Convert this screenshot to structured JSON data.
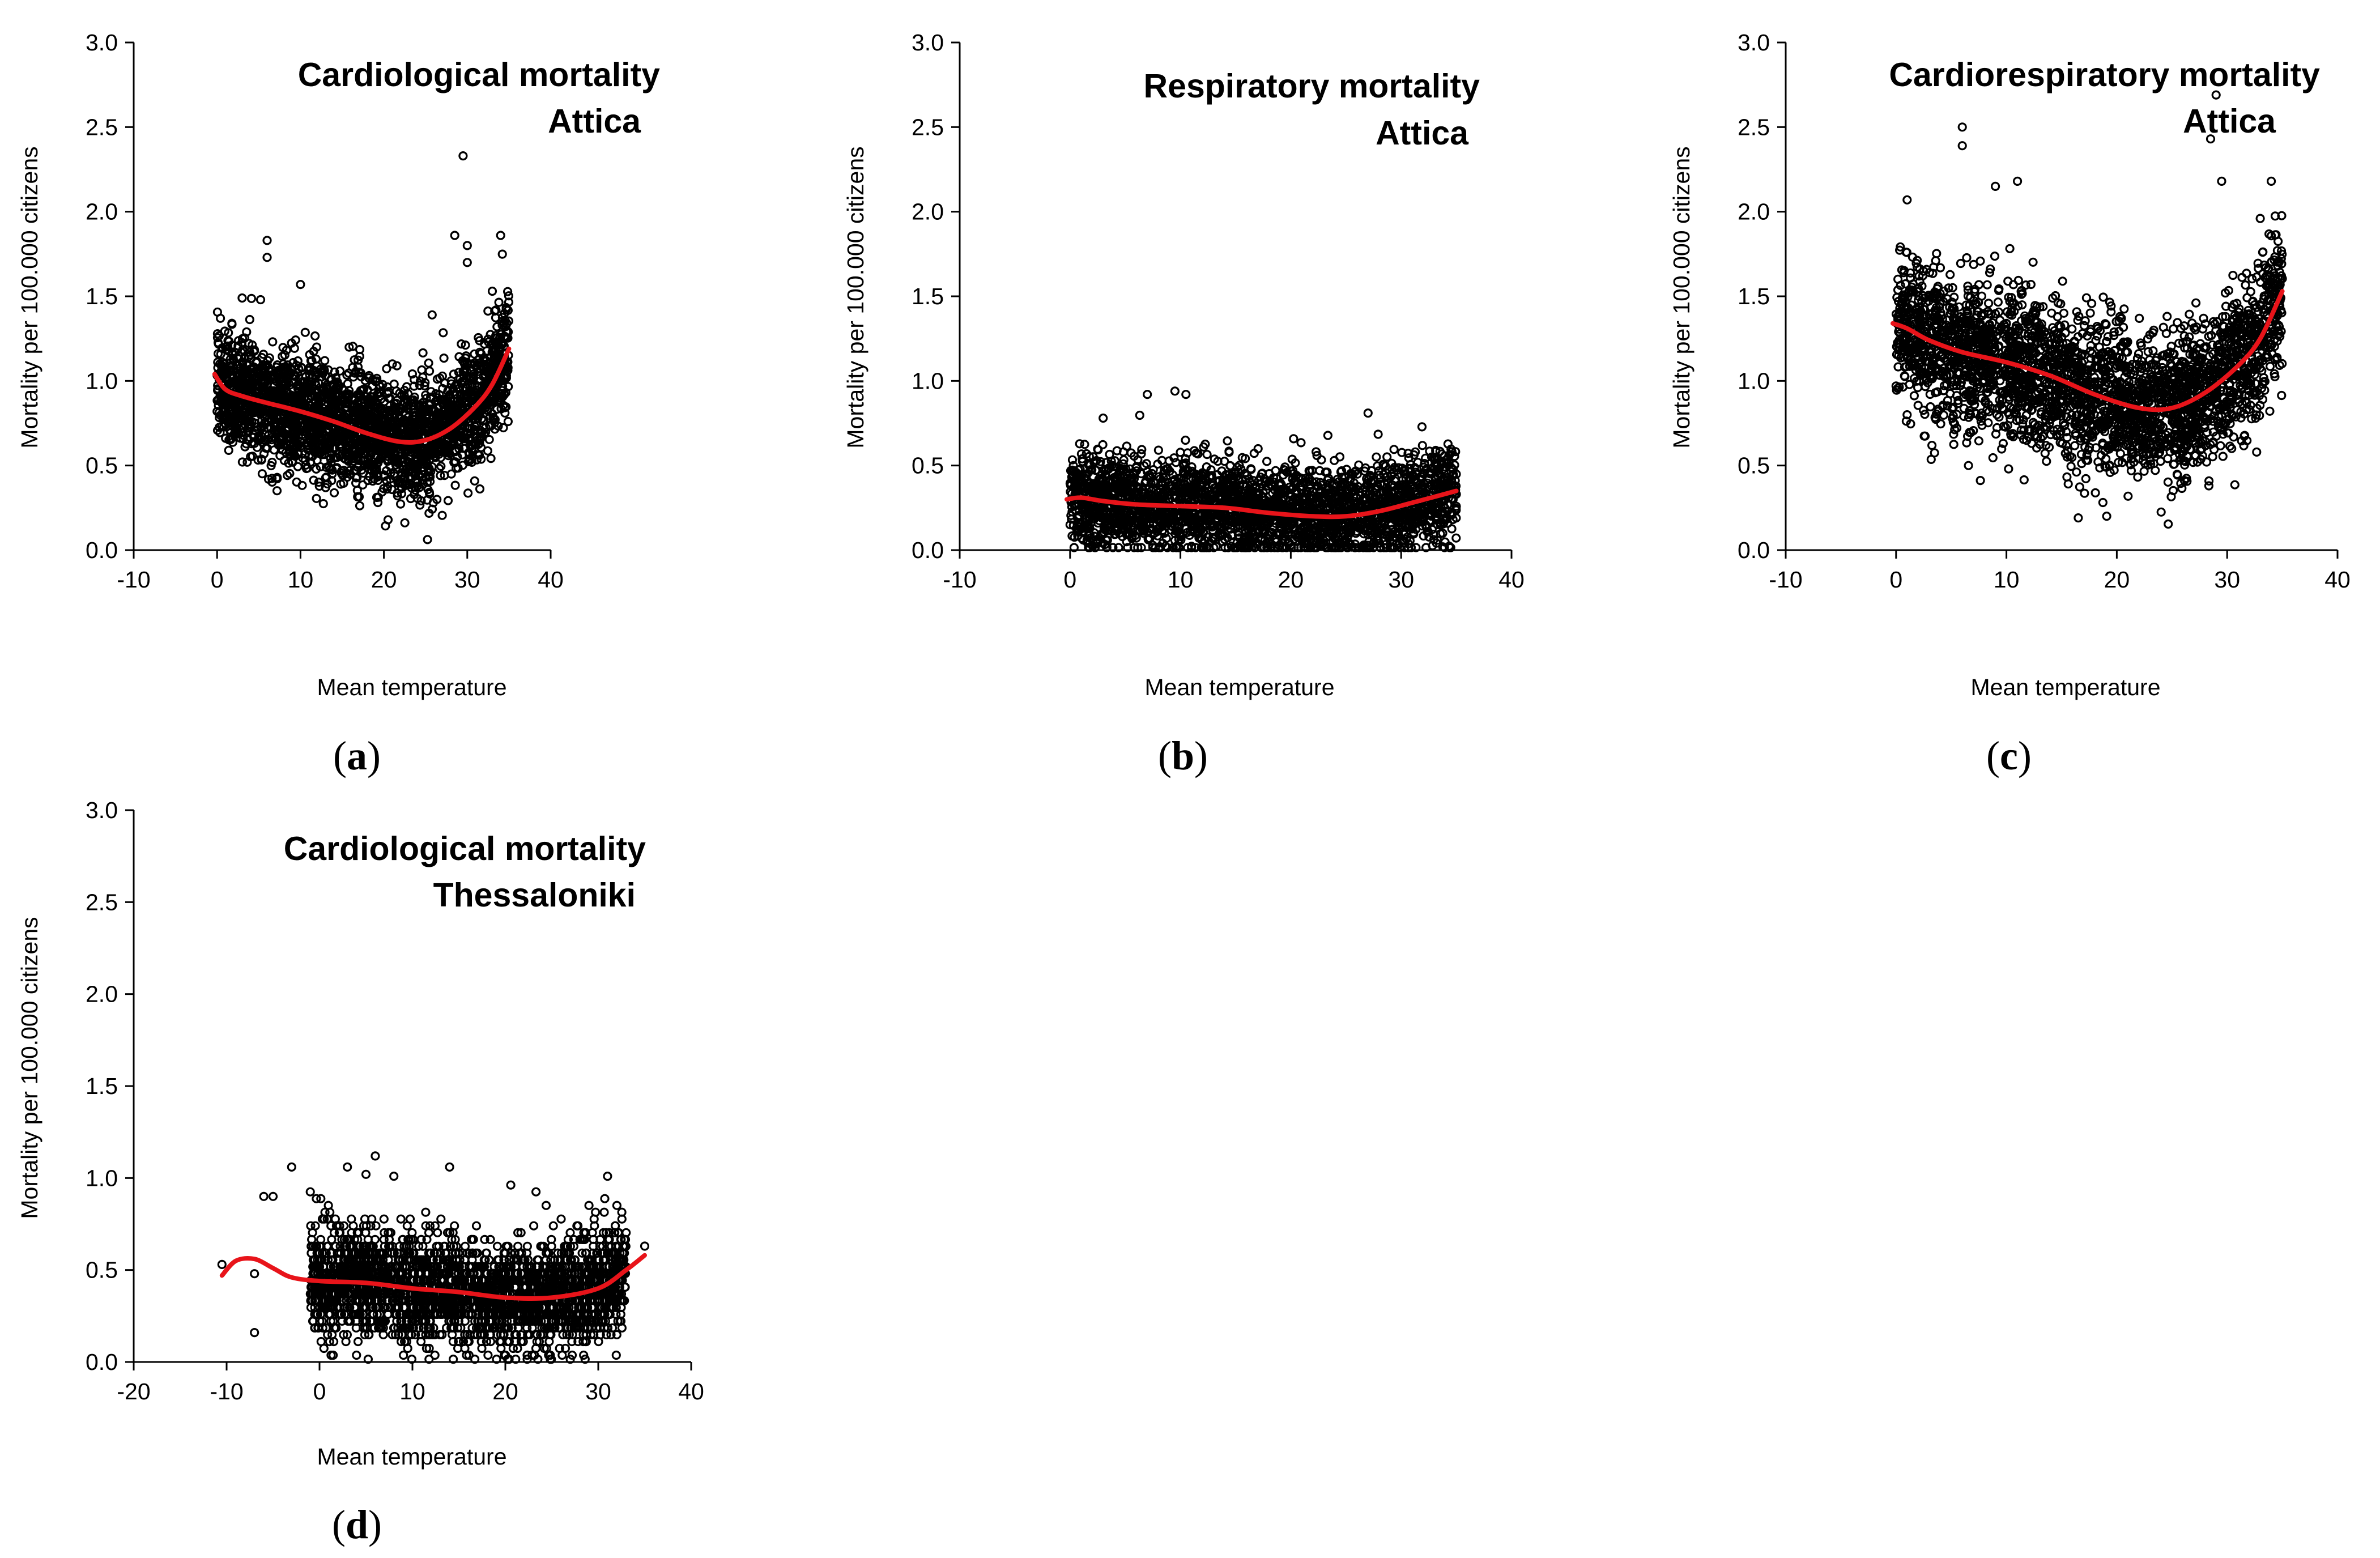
{
  "chart_data": [
    {
      "id": "a",
      "type": "scatter",
      "panel_label": "a",
      "title": [
        "Cardiological mortality",
        "Attica"
      ],
      "xlabel": "Mean temperature",
      "ylabel": "Mortality per 100.000 citizens",
      "xlim": [
        -10,
        40
      ],
      "ylim": [
        0,
        3
      ],
      "xticks": [
        -10,
        0,
        10,
        20,
        30,
        40
      ],
      "yticks": [
        0.0,
        0.5,
        1.0,
        1.5,
        2.0,
        2.5,
        3.0
      ],
      "xtick_labels": [
        "-10",
        "0",
        "10",
        "20",
        "30",
        "40"
      ],
      "ytick_labels": [
        "0.0",
        "0.5",
        "1.0",
        "1.5",
        "2.0",
        "2.5",
        "3.0"
      ],
      "scatter_cloud": {
        "x_range": [
          0,
          35
        ],
        "y_spread": 0.17,
        "count": 2600
      },
      "outliers": [
        [
          29.5,
          2.33
        ],
        [
          28.5,
          1.86
        ],
        [
          30,
          1.8
        ],
        [
          34,
          1.86
        ],
        [
          6,
          1.83
        ],
        [
          6,
          1.73
        ],
        [
          10,
          1.57
        ],
        [
          30,
          1.7
        ],
        [
          33,
          1.53
        ],
        [
          3,
          1.49
        ],
        [
          1,
          1.2
        ],
        [
          0,
          0.82
        ]
      ],
      "trend": {
        "color": "#e8141a",
        "x": [
          -0.3,
          1,
          3,
          6,
          10,
          14,
          18,
          22,
          25,
          28,
          31,
          33,
          35
        ],
        "y": [
          1.04,
          0.95,
          0.91,
          0.87,
          0.82,
          0.76,
          0.69,
          0.64,
          0.65,
          0.72,
          0.85,
          0.98,
          1.19
        ]
      }
    },
    {
      "id": "b",
      "type": "scatter",
      "panel_label": "b",
      "title": [
        "Respiratory mortality",
        "Attica"
      ],
      "xlabel": "Mean temperature",
      "ylabel": "Mortality per 100.000 citizens",
      "xlim": [
        -10,
        40
      ],
      "ylim": [
        0,
        3
      ],
      "xticks": [
        -10,
        0,
        10,
        20,
        30,
        40
      ],
      "yticks": [
        0.0,
        0.5,
        1.0,
        1.5,
        2.0,
        2.5,
        3.0
      ],
      "xtick_labels": [
        "-10",
        "0",
        "10",
        "20",
        "30",
        "40"
      ],
      "ytick_labels": [
        "0.0",
        "0.5",
        "1.0",
        "1.5",
        "2.0",
        "2.5",
        "3.0"
      ],
      "scatter_cloud": {
        "x_range": [
          0,
          35
        ],
        "y_spread": 0.14,
        "count": 2600
      },
      "outliers": [
        [
          9.5,
          0.94
        ],
        [
          10.5,
          0.92
        ],
        [
          7,
          0.92
        ],
        [
          27,
          0.81
        ],
        [
          3,
          0.78
        ],
        [
          0,
          0.15
        ],
        [
          35,
          0.33
        ]
      ],
      "trend": {
        "color": "#e8141a",
        "x": [
          -0.3,
          1,
          3,
          6,
          10,
          14,
          18,
          22,
          25,
          28,
          31,
          35
        ],
        "y": [
          0.3,
          0.31,
          0.29,
          0.27,
          0.26,
          0.25,
          0.22,
          0.2,
          0.2,
          0.23,
          0.28,
          0.35
        ]
      }
    },
    {
      "id": "c",
      "type": "scatter",
      "panel_label": "c",
      "title": [
        "Cardiorespiratory mortality",
        "Attica"
      ],
      "xlabel": "Mean temperature",
      "ylabel": "Mortality per 100.000 citizens",
      "xlim": [
        -10,
        40
      ],
      "ylim": [
        0,
        3
      ],
      "xticks": [
        -10,
        0,
        10,
        20,
        30,
        40
      ],
      "yticks": [
        0.0,
        0.5,
        1.0,
        1.5,
        2.0,
        2.5,
        3.0
      ],
      "xtick_labels": [
        "-10",
        "0",
        "10",
        "20",
        "30",
        "40"
      ],
      "ytick_labels": [
        "0.0",
        "0.5",
        "1.0",
        "1.5",
        "2.0",
        "2.5",
        "3.0"
      ],
      "scatter_cloud": {
        "x_range": [
          0,
          35
        ],
        "y_spread": 0.22,
        "count": 3000
      },
      "outliers": [
        [
          6,
          2.5
        ],
        [
          6,
          2.39
        ],
        [
          29,
          2.69
        ],
        [
          28.5,
          2.43
        ],
        [
          29.5,
          2.18
        ],
        [
          34,
          2.18
        ],
        [
          11,
          2.18
        ],
        [
          9,
          2.15
        ],
        [
          1,
          2.07
        ],
        [
          0,
          0.97
        ],
        [
          1,
          0.8
        ],
        [
          33,
          1.96
        ]
      ],
      "trend": {
        "color": "#e8141a",
        "x": [
          -0.3,
          1,
          3,
          6,
          10,
          14,
          18,
          22,
          25,
          28,
          31,
          33,
          35
        ],
        "y": [
          1.34,
          1.31,
          1.24,
          1.17,
          1.11,
          1.03,
          0.92,
          0.84,
          0.84,
          0.93,
          1.09,
          1.25,
          1.53
        ]
      }
    },
    {
      "id": "d",
      "type": "scatter",
      "panel_label": "d",
      "title": [
        "Cardiological mortality",
        "Thessaloniki"
      ],
      "xlabel": "Mean temperature",
      "ylabel": "Mortality per 100.000 citizens",
      "xlim": [
        -20,
        40
      ],
      "ylim": [
        0,
        3
      ],
      "xticks": [
        -20,
        -10,
        0,
        10,
        20,
        30,
        40
      ],
      "yticks": [
        0.0,
        0.5,
        1.0,
        1.5,
        2.0,
        2.5,
        3.0
      ],
      "xtick_labels": [
        "-20",
        "-10",
        "0",
        "10",
        "20",
        "30",
        "40"
      ],
      "ytick_labels": [
        "0.0",
        "0.5",
        "1.0",
        "1.5",
        "2.0",
        "2.5",
        "3.0"
      ],
      "scatter_cloud": {
        "x_range": [
          -1,
          33
        ],
        "y_spread": 0.15,
        "count": 2800,
        "quantized_step": 0.037
      },
      "outliers": [
        [
          6,
          1.12
        ],
        [
          -3,
          1.06
        ],
        [
          3,
          1.06
        ],
        [
          5,
          1.02
        ],
        [
          14,
          1.06
        ],
        [
          8,
          1.01
        ],
        [
          31,
          1.01
        ],
        [
          -10.5,
          0.53
        ],
        [
          -7,
          0.48
        ],
        [
          -6,
          0.9
        ],
        [
          -5,
          0.9
        ],
        [
          -7,
          0.16
        ],
        [
          35,
          0.63
        ]
      ],
      "trend": {
        "color": "#e8141a",
        "x": [
          -10.5,
          -9,
          -7,
          -5,
          -3,
          0,
          5,
          10,
          15,
          20,
          25,
          30,
          33,
          35
        ],
        "y": [
          0.47,
          0.55,
          0.56,
          0.51,
          0.46,
          0.44,
          0.43,
          0.4,
          0.38,
          0.35,
          0.35,
          0.4,
          0.5,
          0.58
        ]
      }
    }
  ]
}
